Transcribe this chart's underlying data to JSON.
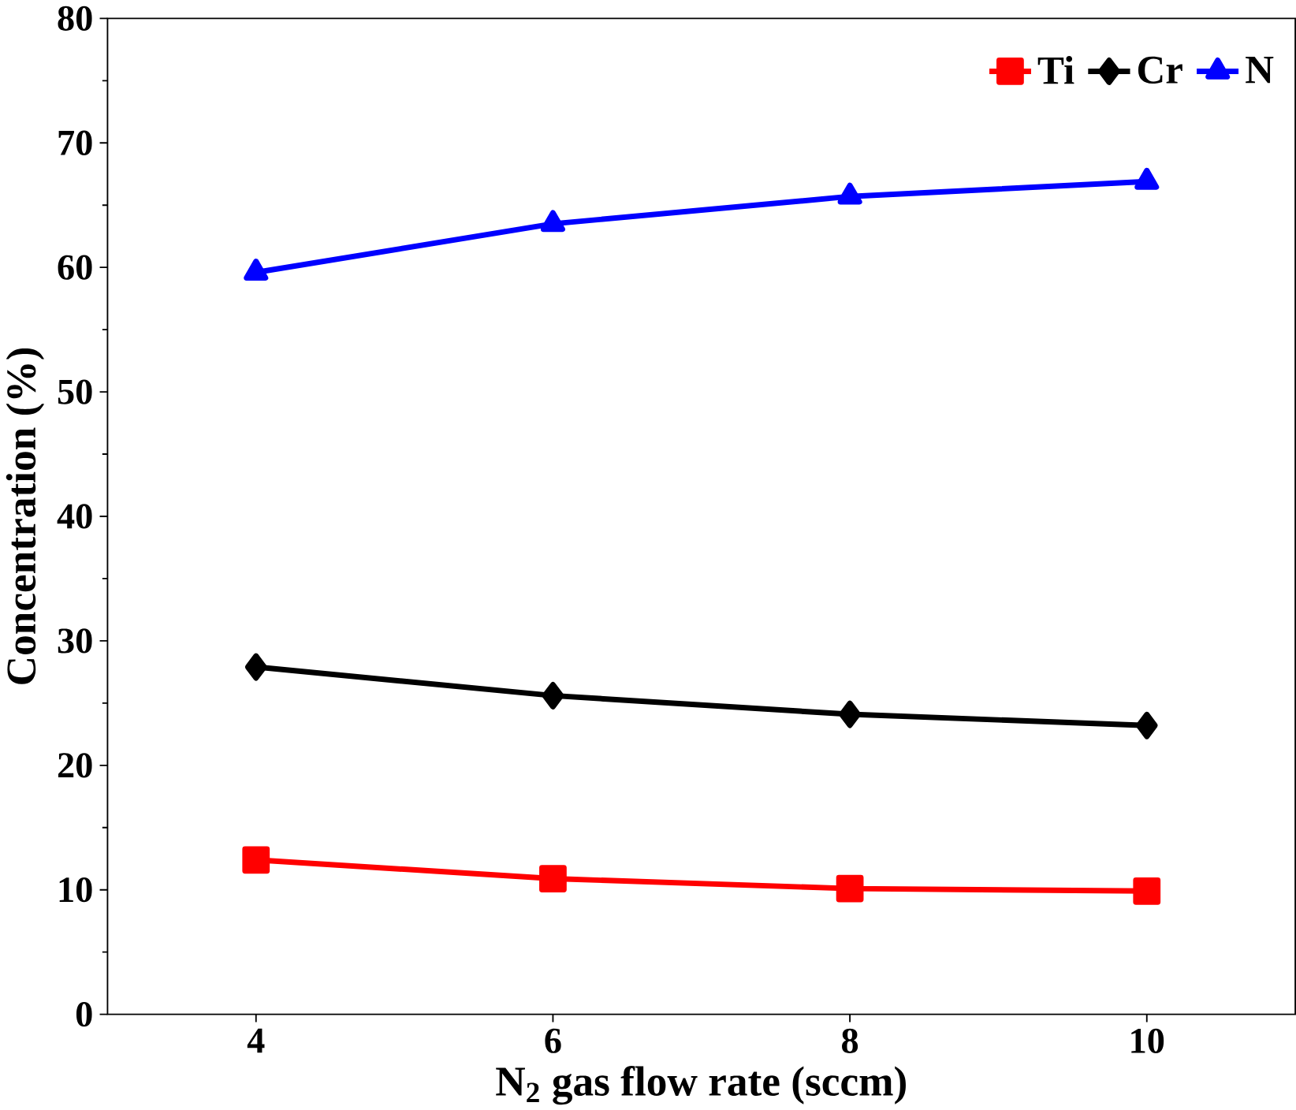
{
  "chart_data": {
    "type": "line",
    "xlabel": "N$_{2}$ gas flow rate (sccm)",
    "ylabel": "Concentration (%)",
    "x": [
      4,
      6,
      8,
      10
    ],
    "xlim": [
      3,
      11
    ],
    "xticks": [
      4,
      6,
      8,
      10
    ],
    "ylim": [
      0,
      80
    ],
    "yticks": [
      0,
      10,
      20,
      30,
      40,
      50,
      60,
      70,
      80
    ],
    "legend": "top right",
    "grid": false,
    "line_style": "solid",
    "series": [
      {
        "name": "Ti",
        "color": "#ff0000",
        "marker": "square",
        "values": [
          12.4,
          10.9,
          10.1,
          9.9
        ]
      },
      {
        "name": "Cr",
        "color": "#000000",
        "marker": "diamond",
        "values": [
          27.9,
          25.6,
          24.1,
          23.2
        ]
      },
      {
        "name": "N",
        "color": "#0000ff",
        "marker": "triangle",
        "values": [
          59.6,
          63.5,
          65.7,
          66.9
        ]
      }
    ]
  }
}
